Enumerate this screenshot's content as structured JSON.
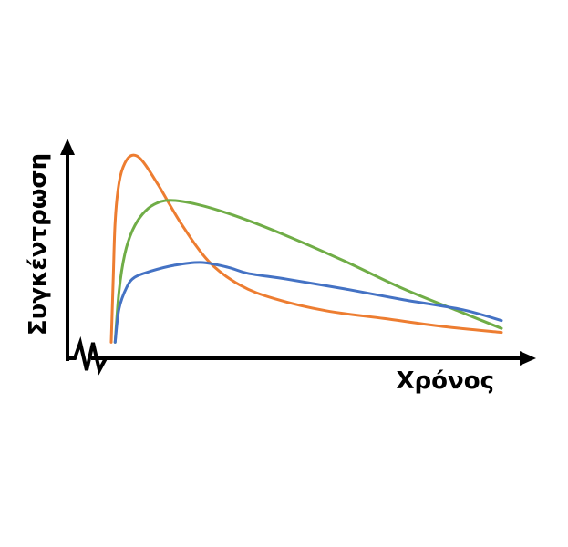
{
  "chart_data": {
    "type": "line",
    "title": "",
    "xlabel": "Χρόνος",
    "ylabel": "Συγκέντρωση",
    "grid": false,
    "axis_break_on_x": true,
    "xlim": [
      0,
      10
    ],
    "ylim": [
      0,
      10
    ],
    "series": [
      {
        "color": "#ED7D31",
        "points": [
          [
            0.0,
            0.4
          ],
          [
            0.05,
            3.5
          ],
          [
            0.1,
            6.5
          ],
          [
            0.2,
            8.5
          ],
          [
            0.35,
            9.5
          ],
          [
            0.55,
            9.9
          ],
          [
            0.8,
            9.6
          ],
          [
            1.2,
            8.4
          ],
          [
            1.8,
            6.4
          ],
          [
            2.5,
            4.5
          ],
          [
            3.3,
            3.3
          ],
          [
            4.2,
            2.6
          ],
          [
            5.5,
            2.0
          ],
          [
            7.0,
            1.6
          ],
          [
            8.5,
            1.2
          ],
          [
            10.0,
            0.9
          ]
        ]
      },
      {
        "color": "#70AD47",
        "points": [
          [
            0.1,
            0.4
          ],
          [
            0.2,
            3.0
          ],
          [
            0.35,
            4.9
          ],
          [
            0.55,
            6.1
          ],
          [
            0.8,
            6.9
          ],
          [
            1.1,
            7.4
          ],
          [
            1.5,
            7.6
          ],
          [
            2.2,
            7.4
          ],
          [
            3.2,
            6.8
          ],
          [
            4.5,
            5.8
          ],
          [
            6.0,
            4.5
          ],
          [
            7.5,
            3.1
          ],
          [
            9.0,
            1.9
          ],
          [
            10.0,
            1.1
          ]
        ]
      },
      {
        "color": "#4472C4",
        "points": [
          [
            0.1,
            0.4
          ],
          [
            0.2,
            2.1
          ],
          [
            0.4,
            3.2
          ],
          [
            0.6,
            3.7
          ],
          [
            1.0,
            4.0
          ],
          [
            1.6,
            4.3
          ],
          [
            2.3,
            4.45
          ],
          [
            3.0,
            4.2
          ],
          [
            3.5,
            3.9
          ],
          [
            4.5,
            3.6
          ],
          [
            6.0,
            3.1
          ],
          [
            7.5,
            2.55
          ],
          [
            9.0,
            2.05
          ],
          [
            10.0,
            1.5
          ]
        ]
      }
    ]
  }
}
